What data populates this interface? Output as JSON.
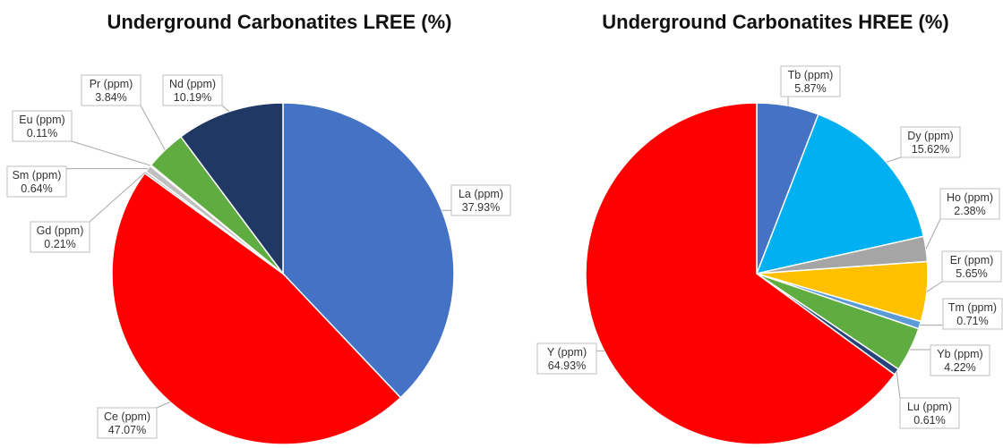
{
  "chart_data": [
    {
      "type": "pie",
      "title": "Underground Carbonatites LREE (%)",
      "slices": [
        {
          "name": "La (ppm)",
          "value": 37.93,
          "label": "37.93%",
          "color": "#4472C4"
        },
        {
          "name": "Ce (ppm)",
          "value": 47.07,
          "label": "47.07%",
          "color": "#FF0000"
        },
        {
          "name": "Gd (ppm)",
          "value": 0.21,
          "label": "0.21%",
          "color": "#A5A5A5"
        },
        {
          "name": "Sm (ppm)",
          "value": 0.64,
          "label": "0.64%",
          "color": "#C0C0C0"
        },
        {
          "name": "Eu (ppm)",
          "value": 0.11,
          "label": "0.11%",
          "color": "#7F7F7F"
        },
        {
          "name": "Pr (ppm)",
          "value": 3.84,
          "label": "3.84%",
          "color": "#5FAD41"
        },
        {
          "name": "Nd (ppm)",
          "value": 10.19,
          "label": "10.19%",
          "color": "#1F3864"
        }
      ]
    },
    {
      "type": "pie",
      "title": "Underground Carbonatites HREE (%)",
      "slices": [
        {
          "name": "Tb (ppm)",
          "value": 5.87,
          "label": "5.87%",
          "color": "#4472C4"
        },
        {
          "name": "Dy (ppm)",
          "value": 15.62,
          "label": "15.62%",
          "color": "#00B0F0"
        },
        {
          "name": "Ho (ppm)",
          "value": 2.38,
          "label": "2.38%",
          "color": "#A5A5A5"
        },
        {
          "name": "Er (ppm)",
          "value": 5.65,
          "label": "5.65%",
          "color": "#FFC000"
        },
        {
          "name": "Tm (ppm)",
          "value": 0.71,
          "label": "0.71%",
          "color": "#5B9BD5"
        },
        {
          "name": "Yb (ppm)",
          "value": 4.22,
          "label": "4.22%",
          "color": "#5FAD41"
        },
        {
          "name": "Lu (ppm)",
          "value": 0.61,
          "label": "0.61%",
          "color": "#264478"
        },
        {
          "name": "Y (ppm)",
          "value": 64.93,
          "label": "64.93%",
          "color": "#FF0000"
        }
      ]
    }
  ]
}
